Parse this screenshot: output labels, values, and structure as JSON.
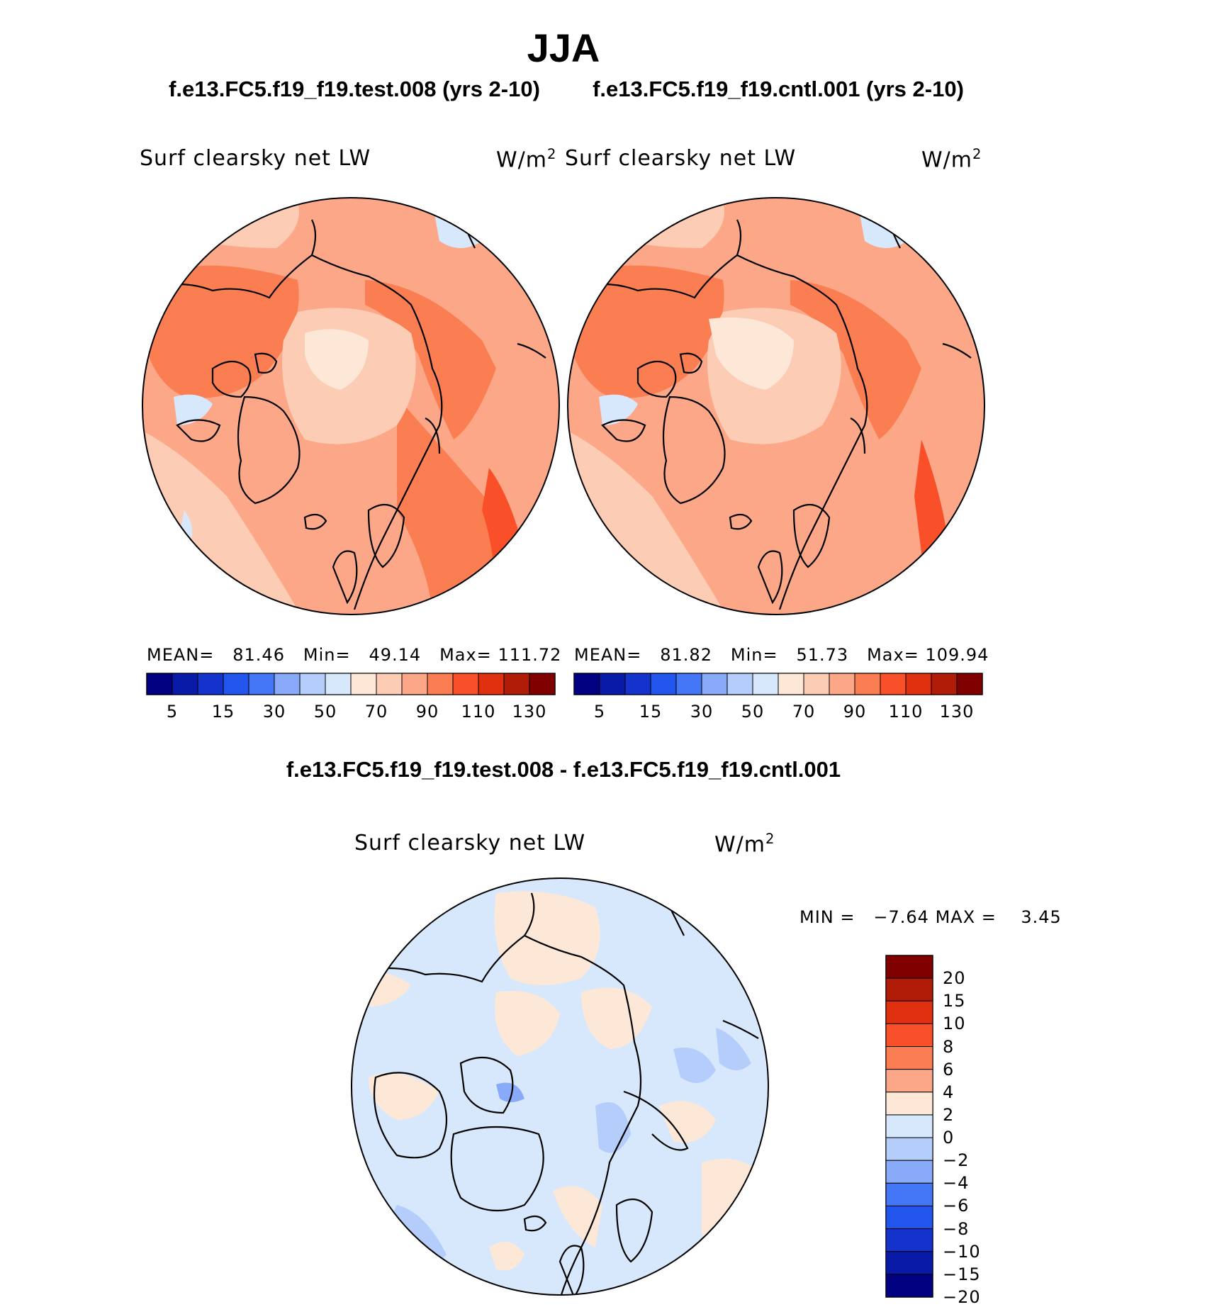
{
  "title": "JJA",
  "panels": [
    {
      "case_title": "f.e13.FC5.f19_f19.test.008 (yrs 2-10)",
      "variable": "Surf clearsky net LW",
      "units": "W/m",
      "units_exp": "2",
      "stats": {
        "mean_label": "MEAN=",
        "mean": "81.46",
        "min_label": "Min=",
        "min": "49.14",
        "max_label": "Max=",
        "max": "111.72"
      }
    },
    {
      "case_title": "f.e13.FC5.f19_f19.cntl.001 (yrs 2-10)",
      "variable": "Surf clearsky net LW",
      "units": "W/m",
      "units_exp": "2",
      "stats": {
        "mean_label": "MEAN=",
        "mean": "81.82",
        "min_label": "Min=",
        "min": "51.73",
        "max_label": "Max=",
        "max": "109.94"
      }
    }
  ],
  "colorbar": {
    "colors": [
      "#000080",
      "#0a1aa8",
      "#1433cc",
      "#2255ee",
      "#4477f5",
      "#88aaf8",
      "#b4cdfb",
      "#d8e8fc",
      "#fde8d8",
      "#fcccb4",
      "#fca888",
      "#fb7e52",
      "#f9502a",
      "#e03010",
      "#b01c08",
      "#800000"
    ],
    "tick_labels": [
      "5",
      "15",
      "30",
      "50",
      "70",
      "90",
      "110",
      "130"
    ]
  },
  "diff": {
    "title": "f.e13.FC5.f19_f19.test.008 - f.e13.FC5.f19_f19.cntl.001",
    "variable": "Surf clearsky net LW",
    "units": "W/m",
    "units_exp": "2",
    "min_label": "MIN =",
    "min": "−7.64",
    "max_label": "MAX =",
    "max": "3.45",
    "colorbar": {
      "colors": [
        "#800000",
        "#b01c08",
        "#e03010",
        "#f9502a",
        "#fb7e52",
        "#fca888",
        "#fde8d8",
        "#d8e8fc",
        "#b4cdfb",
        "#88aaf8",
        "#4477f5",
        "#2255ee",
        "#1433cc",
        "#0a1aa8",
        "#000080"
      ],
      "tick_labels": [
        "20",
        "15",
        "10",
        "8",
        "6",
        "4",
        "2",
        "0",
        "−2",
        "−4",
        "−6",
        "−8",
        "−10",
        "−15",
        "−20"
      ]
    }
  }
}
